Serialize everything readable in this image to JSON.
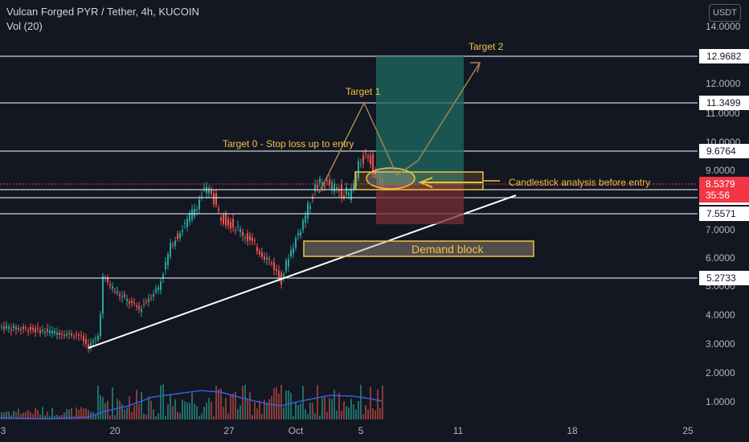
{
  "header": {
    "title": "Vulcan Forged PYR / Tether, 4h, KUCOIN",
    "volume_label": "Vol (20)",
    "currency": "USDT"
  },
  "price_axis": {
    "ticks": [
      "14.0000",
      "12.0000",
      "11.0000",
      "10.0000",
      "9.0000",
      "8.0000",
      "7.0000",
      "6.0000",
      "5.0000",
      "4.0000",
      "3.0000",
      "2.0000",
      "1.0000"
    ]
  },
  "time_axis": {
    "ticks": [
      "3",
      "20",
      "27",
      "Oct",
      "5",
      "11",
      "18",
      "25"
    ]
  },
  "levels": [
    {
      "label": "12.9682",
      "value": 12.9682
    },
    {
      "label": "11.3499",
      "value": 11.3499
    },
    {
      "label": "9.6764",
      "value": 9.6764
    },
    {
      "label": "8.3630",
      "value": 8.363
    },
    {
      "label": "8.0967",
      "value": 8.0967
    },
    {
      "label": "7.5646",
      "value": 7.5646
    },
    {
      "label": "7.5571",
      "value": 7.5571
    },
    {
      "label": "5.2733",
      "value": 5.2733
    }
  ],
  "current_price": {
    "label": "8.5379",
    "value": 8.5379,
    "countdown": "35:56",
    "color": "#f23645"
  },
  "annotations": {
    "target0": "Target 0 - Stop loss up to entry",
    "target1": "Target 1",
    "target2": "Target 2",
    "candlestick_note": "Candlestick analysis before entry",
    "demand_block": "Demand block"
  },
  "colors": {
    "up": "#26a69a",
    "down": "#ef5350",
    "accent": "#f0c343",
    "background": "#131722"
  }
}
